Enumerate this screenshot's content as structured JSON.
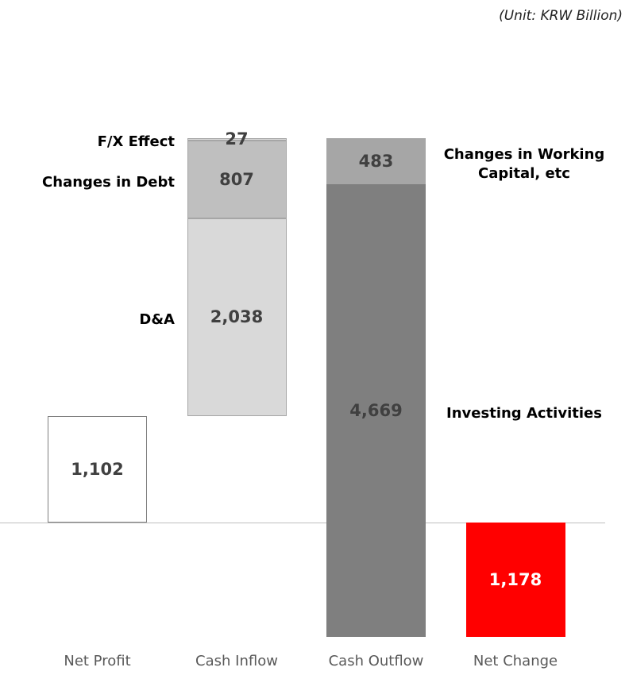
{
  "unit": "(Unit: KRW Billion)",
  "chart_data": {
    "type": "waterfall",
    "categories": [
      "Net Profit",
      "Cash Inflow",
      "Cash Outflow",
      "Net Change"
    ],
    "steps": [
      {
        "from": "zero",
        "direction": "up",
        "parts": [
          {
            "value": 1102,
            "value_label": "1,102",
            "color": "#ffffff",
            "border": "#7f7f7f",
            "label_color": "#404040"
          }
        ]
      },
      {
        "from": "previous",
        "direction": "up",
        "parts": [
          {
            "name": "D&A",
            "value": 2038,
            "value_label": "2,038",
            "color": "#d9d9d9",
            "border": "#a6a6a6",
            "label_color": "#404040"
          },
          {
            "name": "Changes in Debt",
            "value": 807,
            "value_label": "807",
            "color": "#bfbfbf",
            "border": "#a6a6a6",
            "label_color": "#404040"
          },
          {
            "name": "F/X Effect",
            "value": 27,
            "value_label": "27",
            "color": "#d9d9d9",
            "border": "#a6a6a6",
            "label_color": "#404040"
          }
        ]
      },
      {
        "from": "previous",
        "direction": "down",
        "parts": [
          {
            "name": "Changes in Working Capital, etc",
            "value": 483,
            "value_label": "483",
            "color": "#a6a6a6",
            "border": "#a6a6a6",
            "label_color": "#404040"
          },
          {
            "name": "Investing Activities",
            "value": 4669,
            "value_label": "4,669",
            "color": "#7f7f7f",
            "border": "#7f7f7f",
            "label_color": "#404040"
          }
        ]
      },
      {
        "from": "zero",
        "direction": "down",
        "parts": [
          {
            "value": 1178,
            "value_label": "1,178",
            "color": "#ff0000",
            "border": "#ff0000",
            "label_color": "#ffffff"
          }
        ]
      }
    ]
  }
}
